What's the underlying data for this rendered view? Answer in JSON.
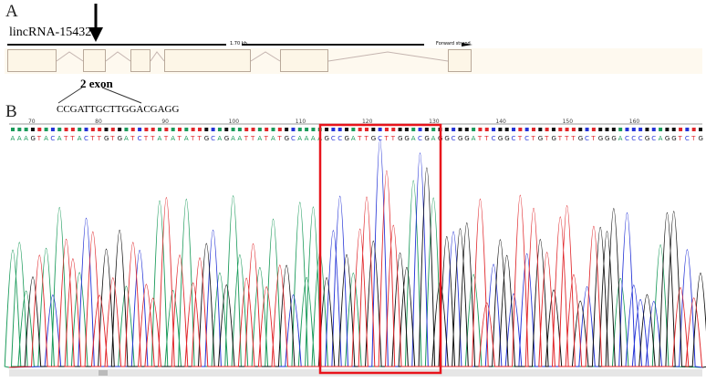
{
  "panel_a": {
    "label": "A",
    "gene_name": "lincRNA-154324",
    "scale_label": "1.70 kb",
    "strand_label": "Forward strand",
    "exon_label": "2 exon",
    "exon_sequence": "CCGATTGCTTGGACGAGG",
    "exon_count": 6,
    "highlighted_exon": 2
  },
  "panel_b": {
    "label": "B",
    "ruler_ticks": [
      "70",
      "80",
      "90",
      "100",
      "110",
      "120",
      "130",
      "140",
      "150",
      "160"
    ],
    "sequence": "AAAGTACATTACTTGTGATCTTATATATTGCAGAATTATATGCAAAAGCCGATTGCTTGGACGAGGCGGATTCGGCTCTGTGTTTGCTGGGACCCGCAGGTCTG",
    "base_colors": {
      "A": "#1a9a5a",
      "C": "#2433d6",
      "G": "#111111",
      "T": "#e0262a"
    },
    "highlight_color": "#e8141c"
  }
}
